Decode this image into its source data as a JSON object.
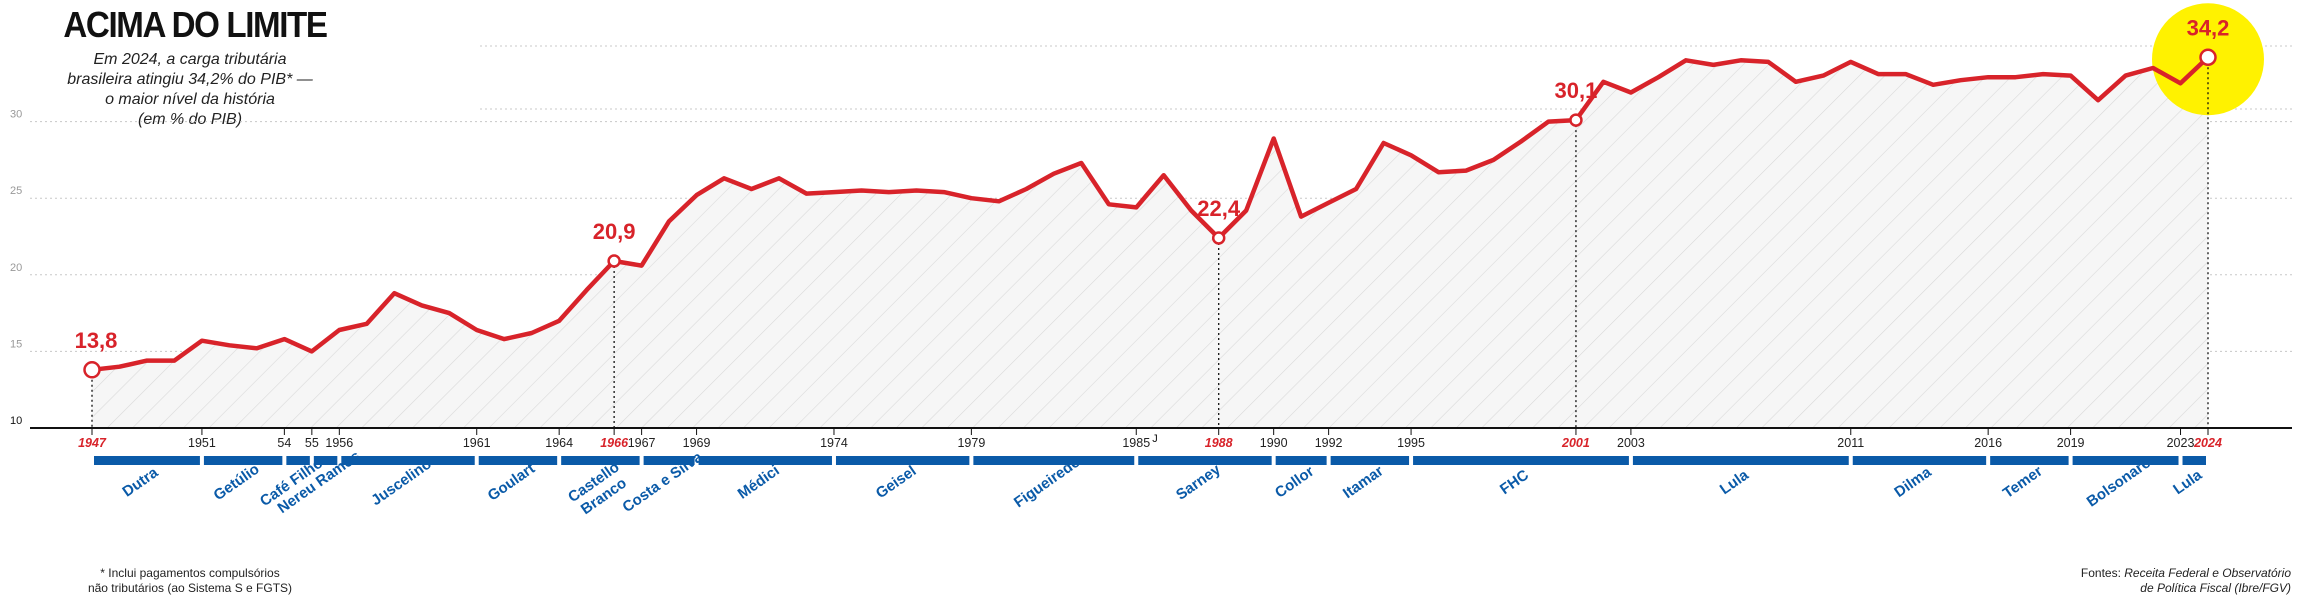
{
  "header": {
    "title": "ACIMA DO LIMITE",
    "subtitle_lines": [
      "Em 2024, a carga tributária",
      "brasileira atingiu 34,2% do PIB* —",
      "o maior nível da história",
      "(em % do PIB)"
    ]
  },
  "footer": {
    "footnote_lines": [
      "* Inclui pagamentos compulsórios",
      "não tributários (ao Sistema S e FGTS)"
    ],
    "sources_prefix": "Fontes: ",
    "sources_line1": "Receita Federal e Observatório",
    "sources_line2": "de Política Fiscal (Ibre/FGV)"
  },
  "colors": {
    "line": "#d8232a",
    "period_bar": "#0a5aa8",
    "highlight": "#fff200",
    "axis": "#111111",
    "grid": "#c8c8c8"
  },
  "chart_data": {
    "type": "line",
    "ylim": [
      10,
      35
    ],
    "ytick_values": [
      10,
      15,
      20,
      25,
      30
    ],
    "ytick_labels": [
      "10",
      "15",
      "20",
      "25",
      "30"
    ],
    "grid": true,
    "xlim": [
      1947,
      2024
    ],
    "x": [
      1947,
      1948,
      1949,
      1950,
      1951,
      1952,
      1953,
      1954,
      1955,
      1956,
      1957,
      1958,
      1959,
      1960,
      1961,
      1962,
      1963,
      1964,
      1965,
      1966,
      1967,
      1968,
      1969,
      1970,
      1971,
      1972,
      1973,
      1974,
      1975,
      1976,
      1977,
      1978,
      1979,
      1980,
      1981,
      1982,
      1983,
      1984,
      1985,
      1986,
      1987,
      1988,
      1989,
      1990,
      1991,
      1992,
      1993,
      1994,
      1995,
      1996,
      1997,
      1998,
      1999,
      2000,
      2001,
      2002,
      2003,
      2004,
      2005,
      2006,
      2007,
      2008,
      2009,
      2010,
      2011,
      2012,
      2013,
      2014,
      2015,
      2016,
      2017,
      2018,
      2019,
      2020,
      2021,
      2022,
      2023,
      2024
    ],
    "series": [
      {
        "values": [
          13.8,
          14.0,
          14.4,
          14.4,
          15.7,
          15.4,
          15.2,
          15.8,
          15.0,
          16.4,
          16.8,
          18.8,
          18.0,
          17.5,
          16.4,
          15.8,
          16.2,
          17.0,
          19.0,
          20.9,
          20.6,
          23.5,
          25.2,
          26.3,
          25.6,
          26.3,
          25.3,
          25.4,
          25.5,
          25.4,
          25.5,
          25.4,
          25.0,
          24.8,
          25.6,
          26.6,
          27.3,
          24.6,
          24.4,
          26.5,
          24.2,
          22.4,
          24.2,
          28.9,
          23.8,
          24.7,
          25.6,
          28.6,
          27.8,
          26.7,
          26.8,
          27.5,
          28.7,
          30.0,
          30.1,
          32.6,
          31.9,
          32.9,
          34.0,
          33.7,
          34.0,
          33.9,
          32.6,
          33.0,
          33.9,
          33.1,
          33.1,
          32.4,
          32.7,
          32.9,
          32.9,
          33.1,
          33.0,
          31.4,
          33.0,
          33.5,
          32.5,
          34.2
        ]
      }
    ],
    "callouts": [
      {
        "year": 1947,
        "value": 13.8,
        "label": "13,8"
      },
      {
        "year": 1966,
        "value": 20.9,
        "label": "20,9"
      },
      {
        "year": 1988,
        "value": 22.4,
        "label": "22,4"
      },
      {
        "year": 2001,
        "value": 30.1,
        "label": "30,1"
      },
      {
        "year": 2024,
        "value": 34.2,
        "label": "34,2"
      }
    ],
    "year_ticks": [
      {
        "year": 1947,
        "label": "1947",
        "red": true
      },
      {
        "year": 1951,
        "label": "1951",
        "red": false
      },
      {
        "year": 1954,
        "label": "54",
        "red": false
      },
      {
        "year": 1955,
        "label": "55",
        "red": false
      },
      {
        "year": 1956,
        "label": "1956",
        "red": false
      },
      {
        "year": 1961,
        "label": "1961",
        "red": false
      },
      {
        "year": 1964,
        "label": "1964",
        "red": false
      },
      {
        "year": 1966,
        "label": "1966",
        "red": true
      },
      {
        "year": 1967,
        "label": "1967",
        "red": false
      },
      {
        "year": 1969,
        "label": "1969",
        "red": false
      },
      {
        "year": 1974,
        "label": "1974",
        "red": false
      },
      {
        "year": 1979,
        "label": "1979",
        "red": false
      },
      {
        "year": 1985,
        "label": "1985",
        "red": false
      },
      {
        "year": 1985,
        "label": "J",
        "red": false
      },
      {
        "year": 1988,
        "label": "1988",
        "red": true
      },
      {
        "year": 1990,
        "label": "1990",
        "red": false
      },
      {
        "year": 1992,
        "label": "1992",
        "red": false
      },
      {
        "year": 1995,
        "label": "1995",
        "red": false
      },
      {
        "year": 2001,
        "label": "2001",
        "red": true
      },
      {
        "year": 2003,
        "label": "2003",
        "red": false
      },
      {
        "year": 2011,
        "label": "2011",
        "red": false
      },
      {
        "year": 2016,
        "label": "2016",
        "red": false
      },
      {
        "year": 2019,
        "label": "2019",
        "red": false
      },
      {
        "year": 2023,
        "label": "2023",
        "red": false
      },
      {
        "year": 2024,
        "label": "2024",
        "red": true
      }
    ],
    "periods": [
      {
        "name": "Dutra",
        "start": 1947,
        "end": 1951
      },
      {
        "name": "Getúlio",
        "start": 1951,
        "end": 1954
      },
      {
        "name": "Café Filho",
        "start": 1954,
        "end": 1955
      },
      {
        "name": "Nereu Ramos",
        "start": 1955,
        "end": 1956
      },
      {
        "name": "Juscelino",
        "start": 1956,
        "end": 1961
      },
      {
        "name": "Goulart",
        "start": 1961,
        "end": 1964
      },
      {
        "name": "Castello Branco",
        "start": 1964,
        "end": 1967
      },
      {
        "name": "Costa e Silva",
        "start": 1967,
        "end": 1969
      },
      {
        "name": "Médici",
        "start": 1969,
        "end": 1974
      },
      {
        "name": "Geisel",
        "start": 1974,
        "end": 1979
      },
      {
        "name": "Figueiredo",
        "start": 1979,
        "end": 1985
      },
      {
        "name": "Sarney",
        "start": 1985,
        "end": 1990
      },
      {
        "name": "Collor",
        "start": 1990,
        "end": 1992
      },
      {
        "name": "Itamar",
        "start": 1992,
        "end": 1995
      },
      {
        "name": "FHC",
        "start": 1995,
        "end": 2003
      },
      {
        "name": "Lula",
        "start": 2003,
        "end": 2011
      },
      {
        "name": "Dilma",
        "start": 2011,
        "end": 2016
      },
      {
        "name": "Temer",
        "start": 2016,
        "end": 2019
      },
      {
        "name": "Bolsonaro",
        "start": 2019,
        "end": 2023
      },
      {
        "name": "Lula",
        "start": 2023,
        "end": 2024
      }
    ]
  }
}
